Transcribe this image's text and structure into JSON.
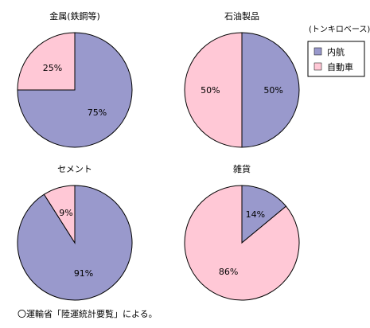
{
  "unit_note": "(トンキロベース)",
  "source_note": "〇運輸省「陸運統計要覧」による。",
  "legend": [
    {
      "label": "内航",
      "color": "#9999cc"
    },
    {
      "label": "自動車",
      "color": "#ffc8d6"
    }
  ],
  "chart_data": [
    {
      "type": "pie",
      "title": "金属(鉄鋼等)",
      "series": [
        {
          "name": "内航",
          "value": 75,
          "label": "75%"
        },
        {
          "name": "自動車",
          "value": 25,
          "label": "25%"
        }
      ]
    },
    {
      "type": "pie",
      "title": "石油製品",
      "series": [
        {
          "name": "内航",
          "value": 50,
          "label": "50%"
        },
        {
          "name": "自動車",
          "value": 50,
          "label": "50%"
        }
      ]
    },
    {
      "type": "pie",
      "title": "セメント",
      "series": [
        {
          "name": "内航",
          "value": 91,
          "label": "91%"
        },
        {
          "name": "自動車",
          "value": 9,
          "label": "9%"
        }
      ]
    },
    {
      "type": "pie",
      "title": "雑貨",
      "series": [
        {
          "name": "内航",
          "value": 14,
          "label": "14%"
        },
        {
          "name": "自動車",
          "value": 86,
          "label": "86%"
        }
      ]
    }
  ]
}
